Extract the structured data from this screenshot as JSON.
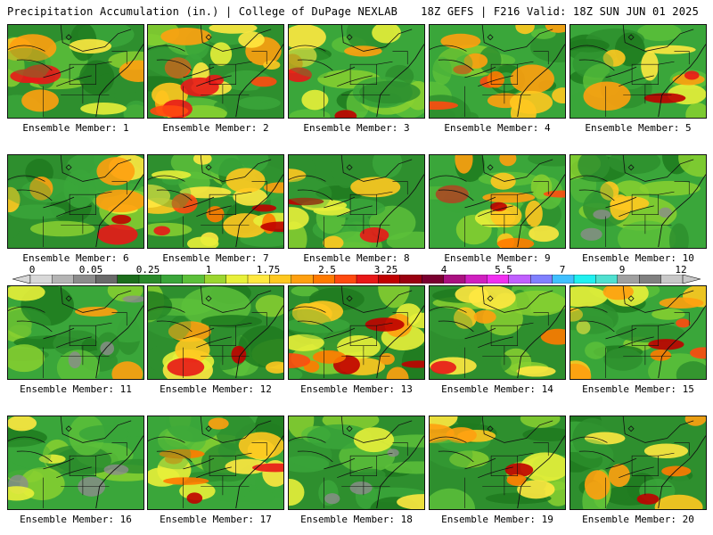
{
  "header": {
    "left_title": "Precipitation Accumulation (in.) | College of DuPage NEXLAB",
    "right_title": "18Z GEFS | F216 Valid: 18Z SUN JUN 01 2025"
  },
  "legend": {
    "tick_labels": [
      "0",
      "0.05",
      "0.25",
      "1",
      "1.75",
      "2.5",
      "3.25",
      "4",
      "5.5",
      "7",
      "9",
      "12"
    ],
    "colors": [
      "#d8d8d8",
      "#b4b4b4",
      "#8c8c8c",
      "#6a6a6a",
      "#1c6e1c",
      "#2a8a2a",
      "#3aa63a",
      "#5cc03a",
      "#9cd630",
      "#e8f03a",
      "#ffe840",
      "#ffc820",
      "#ffa010",
      "#ff7a00",
      "#ff4a10",
      "#e81818",
      "#c00000",
      "#9a0010",
      "#7a0030",
      "#aa1080",
      "#d020c0",
      "#f030f0",
      "#c060ff",
      "#8080ff",
      "#40c0ff",
      "#20f0f0",
      "#50e0d0",
      "#a0a0a0",
      "#808080",
      "#c8c8c8"
    ]
  },
  "panels": [
    {
      "label": "Ensemble Member: 1",
      "hot": 1
    },
    {
      "label": "Ensemble Member: 2",
      "hot": 3
    },
    {
      "label": "Ensemble Member: 3",
      "hot": 1
    },
    {
      "label": "Ensemble Member: 4",
      "hot": 2
    },
    {
      "label": "Ensemble Member: 5",
      "hot": 1
    },
    {
      "label": "Ensemble Member: 6",
      "hot": 1
    },
    {
      "label": "Ensemble Member: 7",
      "hot": 3
    },
    {
      "label": "Ensemble Member: 8",
      "hot": 1
    },
    {
      "label": "Ensemble Member: 9",
      "hot": 2
    },
    {
      "label": "Ensemble Member: 10",
      "hot": 0
    },
    {
      "label": "Ensemble Member: 11",
      "hot": 0
    },
    {
      "label": "Ensemble Member: 12",
      "hot": 1
    },
    {
      "label": "Ensemble Member: 13",
      "hot": 3
    },
    {
      "label": "Ensemble Member: 14",
      "hot": 1
    },
    {
      "label": "Ensemble Member: 15",
      "hot": 2
    },
    {
      "label": "Ensemble Member: 16",
      "hot": 0
    },
    {
      "label": "Ensemble Member: 17",
      "hot": 2
    },
    {
      "label": "Ensemble Member: 18",
      "hot": 0
    },
    {
      "label": "Ensemble Member: 19",
      "hot": 1
    },
    {
      "label": "Ensemble Member: 20",
      "hot": 1
    }
  ]
}
